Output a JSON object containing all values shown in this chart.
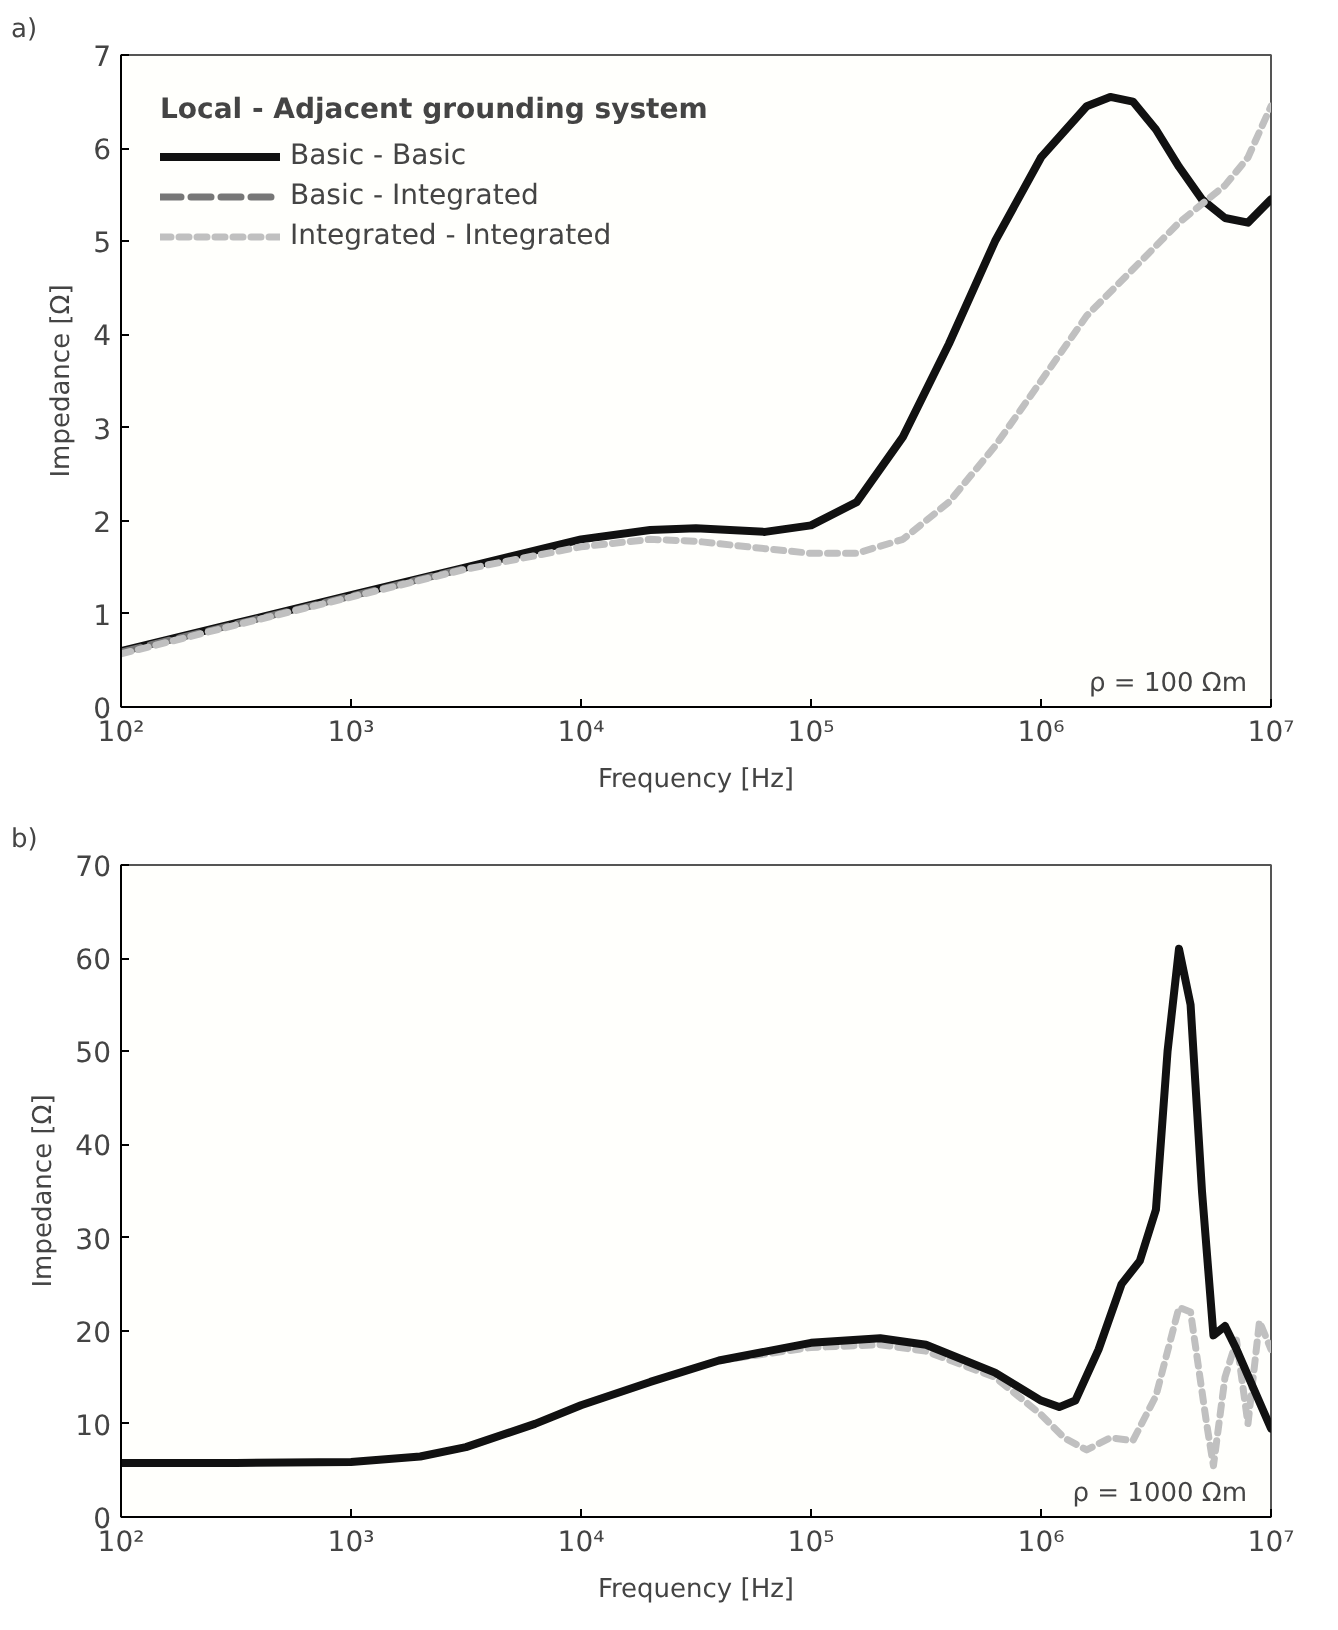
{
  "chart_data": [
    {
      "type": "line",
      "title": "a)",
      "xlabel": "Frequency [Hz]",
      "ylabel": "Impedance [Ω]",
      "legend_title": "Local - Adjacent grounding system",
      "legend": "top left",
      "grid": false,
      "log": "x",
      "xlim": [
        100,
        10000000
      ],
      "xticks": [
        {
          "value": 100,
          "label": "10²"
        },
        {
          "value": 1000,
          "label": "10³"
        },
        {
          "value": 10000,
          "label": "10⁴"
        },
        {
          "value": 100000,
          "label": "10⁵"
        },
        {
          "value": 1000000,
          "label": "10⁶"
        },
        {
          "value": 10000000,
          "label": "10⁷"
        }
      ],
      "ylim": [
        0,
        7
      ],
      "yticks": [
        0,
        1,
        2,
        3,
        4,
        5,
        6,
        7
      ],
      "annotations": [
        "ρ = 100 Ωm"
      ],
      "series": [
        {
          "name": "Basic - Basic",
          "color": "#111111",
          "line_style": "solid",
          "x": [
            100,
            316,
            1000,
            3160,
            10000,
            20000,
            31600,
            63100,
            100000,
            158000,
            251000,
            398000,
            631000,
            1000000,
            1580000,
            2000000,
            2510000,
            3160000,
            3980000,
            5010000,
            6310000,
            7940000,
            10000000
          ],
          "values": [
            0.6,
            0.9,
            1.2,
            1.5,
            1.8,
            1.9,
            1.92,
            1.88,
            1.95,
            2.2,
            2.9,
            3.9,
            5.0,
            5.9,
            6.45,
            6.55,
            6.5,
            6.2,
            5.8,
            5.45,
            5.25,
            5.2,
            5.45
          ]
        },
        {
          "name": "Basic - Integrated",
          "color": "#777777",
          "line_style": "dashed",
          "x": [
            100,
            316,
            1000,
            3160
          ],
          "values": [
            0.59,
            0.89,
            1.19,
            1.49
          ]
        },
        {
          "name": "Integrated - Integrated",
          "color": "#c0c0c0",
          "line_style": "dotted",
          "x": [
            100,
            316,
            1000,
            3160,
            10000,
            20000,
            31600,
            63100,
            100000,
            158000,
            251000,
            398000,
            631000,
            1000000,
            1580000,
            2510000,
            3980000,
            6310000,
            7940000,
            10000000
          ],
          "values": [
            0.57,
            0.88,
            1.18,
            1.48,
            1.72,
            1.8,
            1.78,
            1.7,
            1.65,
            1.65,
            1.8,
            2.2,
            2.8,
            3.5,
            4.2,
            4.7,
            5.2,
            5.6,
            5.9,
            6.45
          ]
        }
      ]
    },
    {
      "type": "line",
      "title": "b)",
      "xlabel": "Frequency [Hz]",
      "ylabel": "Impedance [Ω]",
      "grid": false,
      "log": "x",
      "xlim": [
        100,
        10000000
      ],
      "xticks": [
        {
          "value": 100,
          "label": "10²"
        },
        {
          "value": 1000,
          "label": "10³"
        },
        {
          "value": 10000,
          "label": "10⁴"
        },
        {
          "value": 100000,
          "label": "10⁵"
        },
        {
          "value": 1000000,
          "label": "10⁶"
        },
        {
          "value": 10000000,
          "label": "10⁷"
        }
      ],
      "ylim": [
        0,
        70
      ],
      "yticks": [
        0,
        10,
        20,
        30,
        40,
        50,
        60,
        70
      ],
      "annotations": [
        "ρ = 1000 Ωm"
      ],
      "series": [
        {
          "color": "#c0c0c0",
          "line_style": "dotted",
          "x": [
            39800,
            100000,
            200000,
            316000,
            631000,
            1000000,
            1260000,
            1580000,
            2000000,
            2510000,
            3160000,
            3980000,
            4470000,
            5250000,
            5620000,
            6310000,
            7080000,
            7940000,
            8910000,
            10000000
          ],
          "values": [
            16.8,
            18.2,
            18.5,
            17.8,
            15,
            11,
            8.5,
            7.2,
            8.5,
            8.2,
            13,
            22.5,
            22,
            10,
            5.5,
            15,
            19,
            10,
            21,
            18
          ]
        },
        {
          "color": "#111111",
          "line_style": "solid",
          "x": [
            100,
            316,
            1000,
            2000,
            3160,
            6310,
            10000,
            20000,
            39800,
            100000,
            200000,
            316000,
            631000,
            1000000,
            1200000,
            1410000,
            1780000,
            2240000,
            2690000,
            3160000,
            3550000,
            3980000,
            4470000,
            5010000,
            5620000,
            6310000,
            7080000,
            10000000
          ],
          "values": [
            5.8,
            5.8,
            5.9,
            6.5,
            7.5,
            10,
            12,
            14.5,
            16.8,
            18.7,
            19.2,
            18.5,
            15.5,
            12.5,
            11.8,
            12.5,
            18,
            25,
            27.5,
            33,
            50,
            61,
            55,
            35,
            19.5,
            20.5,
            18,
            9.5
          ]
        }
      ]
    }
  ]
}
